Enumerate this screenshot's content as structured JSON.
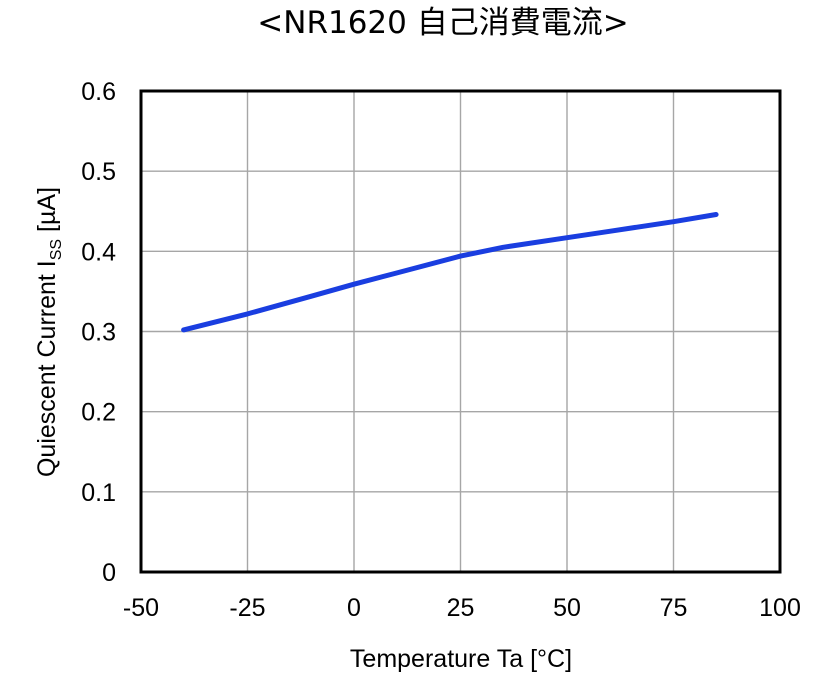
{
  "chart_data": {
    "type": "line",
    "title": "<NR1620 自己消費電流>",
    "xlabel": "Temperature Ta [°C]",
    "ylabel": {
      "prefix": "Quiescent Current I",
      "subscript": "SS",
      "suffix": " [µA]"
    },
    "xlim": [
      -50,
      100
    ],
    "ylim": [
      0,
      0.6
    ],
    "x_ticks": [
      -50,
      -25,
      0,
      25,
      50,
      75,
      100
    ],
    "x_tick_labels": [
      "-50",
      "-25",
      "0",
      "25",
      "50",
      "75",
      "100"
    ],
    "y_ticks": [
      0,
      0.1,
      0.2,
      0.3,
      0.4,
      0.5,
      0.6
    ],
    "y_tick_labels": [
      "0",
      "0.1",
      "0.2",
      "0.3",
      "0.4",
      "0.5",
      "0.6"
    ],
    "grid": true,
    "legend": "none",
    "series": [
      {
        "color": "#1a3ee0",
        "x": [
          -40,
          -25,
          -10,
          0,
          10,
          25,
          35,
          50,
          60,
          75,
          85
        ],
        "y": [
          0.302,
          0.322,
          0.344,
          0.359,
          0.373,
          0.394,
          0.405,
          0.417,
          0.425,
          0.437,
          0.446
        ]
      }
    ]
  }
}
